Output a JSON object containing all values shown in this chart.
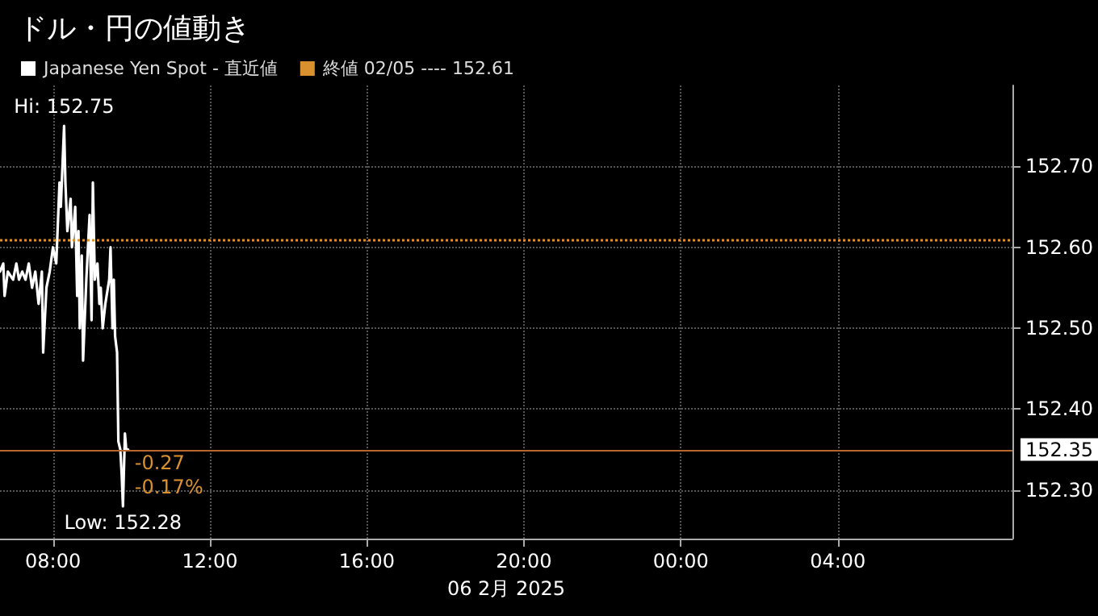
{
  "chart_data": {
    "type": "line",
    "title": "ドル・円の値動き",
    "xlabel": "06 2月 2025",
    "x": [
      "2025-02-06T06:39",
      "2025-02-06T06:44",
      "2025-02-06T06:46",
      "2025-02-06T06:51",
      "2025-02-06T06:59",
      "2025-02-06T07:04",
      "2025-02-06T07:08",
      "2025-02-06T07:13",
      "2025-02-06T07:18",
      "2025-02-06T07:23",
      "2025-02-06T07:28",
      "2025-02-06T07:33",
      "2025-02-06T07:38",
      "2025-02-06T07:43",
      "2025-02-06T07:45",
      "2025-02-06T07:50",
      "2025-02-06T07:55",
      "2025-02-06T08:00",
      "2025-02-06T08:05",
      "2025-02-06T08:10",
      "2025-02-06T08:12",
      "2025-02-06T08:17",
      "2025-02-06T08:19",
      "2025-02-06T08:22",
      "2025-02-06T08:27",
      "2025-02-06T08:29",
      "2025-02-06T08:34",
      "2025-02-06T08:37",
      "2025-02-06T08:39",
      "2025-02-06T08:41",
      "2025-02-06T08:44",
      "2025-02-06T08:46",
      "2025-02-06T08:51",
      "2025-02-06T08:56",
      "2025-02-06T08:59",
      "2025-02-06T09:01",
      "2025-02-06T09:04",
      "2025-02-06T09:08",
      "2025-02-06T09:11",
      "2025-02-06T09:13",
      "2025-02-06T09:16",
      "2025-02-06T09:20",
      "2025-02-06T09:26",
      "2025-02-06T09:28",
      "2025-02-06T09:31",
      "2025-02-06T09:33",
      "2025-02-06T09:35",
      "2025-02-06T09:38",
      "2025-02-06T09:40",
      "2025-02-06T09:43",
      "2025-02-06T09:45",
      "2025-02-06T09:47",
      "2025-02-06T09:50",
      "2025-02-06T09:52",
      "2025-02-06T09:55"
    ],
    "series": [
      {
        "name": "Japanese Yen Spot - 直近値",
        "color": "#ffffff",
        "values": [
          152.57,
          152.58,
          152.54,
          152.57,
          152.56,
          152.58,
          152.56,
          152.57,
          152.56,
          152.58,
          152.55,
          152.57,
          152.53,
          152.57,
          152.47,
          152.55,
          152.57,
          152.6,
          152.58,
          152.68,
          152.65,
          152.75,
          152.68,
          152.62,
          152.66,
          152.6,
          152.65,
          152.54,
          152.62,
          152.5,
          152.59,
          152.46,
          152.56,
          152.64,
          152.51,
          152.68,
          152.56,
          152.58,
          152.53,
          152.55,
          152.5,
          152.53,
          152.56,
          152.6,
          152.5,
          152.56,
          152.49,
          152.47,
          152.36,
          152.35,
          152.32,
          152.28,
          152.37,
          152.35,
          152.35
        ]
      }
    ],
    "xlim": [
      "2025-02-06T06:39",
      "2025-02-07T08:27"
    ],
    "xticks": [
      {
        "value": "2025-02-06T08:00",
        "label": "08:00"
      },
      {
        "value": "2025-02-06T12:00",
        "label": "12:00"
      },
      {
        "value": "2025-02-06T16:00",
        "label": "16:00"
      },
      {
        "value": "2025-02-06T20:00",
        "label": "20:00"
      },
      {
        "value": "2025-02-07T00:00",
        "label": "00:00"
      },
      {
        "value": "2025-02-07T04:00",
        "label": "04:00"
      }
    ],
    "ylim": [
      152.24,
      152.8
    ],
    "yticks": [
      {
        "value": 152.3,
        "label": "152.30"
      },
      {
        "value": 152.4,
        "label": "152.40"
      },
      {
        "value": 152.5,
        "label": "152.50"
      },
      {
        "value": 152.6,
        "label": "152.60"
      },
      {
        "value": 152.7,
        "label": "152.70"
      }
    ],
    "ref_lines": [
      {
        "axis": "y",
        "value": 152.61,
        "label": "終値 02/05 ---- 152.61",
        "color": "#d9912f",
        "line_style": "dotted"
      },
      {
        "axis": "y",
        "value": 152.35,
        "label": "152.35",
        "color": "#b8682c",
        "line_style": "solid"
      }
    ],
    "annotations": [
      {
        "text": "Hi: 152.75",
        "x": "2025-02-06T08:17",
        "y": 152.75
      },
      {
        "text": "Low: 152.28",
        "x": "2025-02-06T09:47",
        "y": 152.28
      },
      {
        "text": "-0.27",
        "x": "2025-02-06T09:55",
        "y": 152.35
      },
      {
        "text": "-0.17%",
        "x": "2025-02-06T09:55",
        "y": 152.35
      }
    ],
    "grid": true,
    "legend": "top left",
    "marker": "none",
    "line_style": "solid"
  }
}
